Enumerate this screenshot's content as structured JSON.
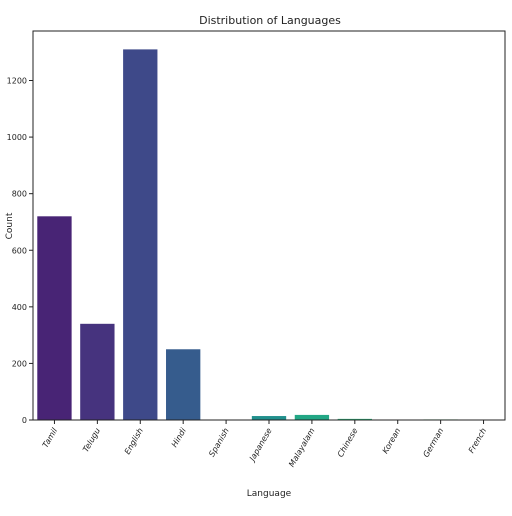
{
  "chart_data": {
    "type": "bar",
    "title": "Distribution of Languages",
    "xlabel": "Language",
    "ylabel": "Count",
    "categories": [
      "Tamil",
      "Telugu",
      "English",
      "Hindi",
      "Spanish",
      "Japanese",
      "Malayalam",
      "Chinese",
      "Korean",
      "German",
      "French"
    ],
    "values": [
      720,
      340,
      1310,
      250,
      1,
      14,
      18,
      4,
      1,
      2,
      1
    ],
    "colors": [
      "#482475",
      "#46337e",
      "#3e4989",
      "#365c8d",
      "#2a788e",
      "#21908d",
      "#22a785",
      "#2fb47c",
      "#35b779",
      "#44bf70",
      "#6ccd5a"
    ],
    "ylim": [
      0,
      1375
    ],
    "yticks": [
      0,
      200,
      400,
      600,
      800,
      1000,
      1200
    ],
    "grid": false,
    "legend": false
  }
}
